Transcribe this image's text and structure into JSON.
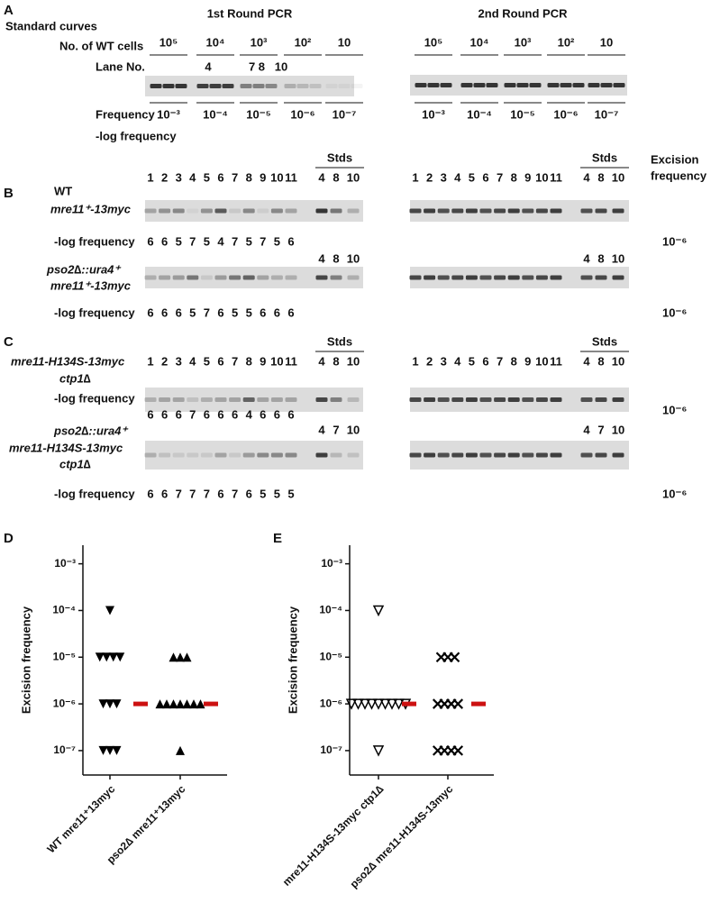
{
  "panel_a": {
    "label": "A",
    "heading": "Standard curves",
    "round1_title": "1st Round PCR",
    "round2_title": "2nd Round PCR",
    "cells_label": "No. of WT cells",
    "cell_counts": [
      "10⁵",
      "10⁴",
      "10³",
      "10²",
      "10"
    ],
    "lane_label": "Lane No.",
    "lane_numbers": [
      "4",
      "7 8",
      "10"
    ],
    "frequency_label": "Frequency",
    "frequencies": [
      "10⁻³",
      "10⁻⁴",
      "10⁻⁵",
      "10⁻⁶",
      "10⁻⁷"
    ],
    "neglog_label": "-log frequency"
  },
  "panel_b": {
    "label": "B",
    "header": [
      "Excision",
      "frequency"
    ],
    "stds_label": "Stds",
    "lanes": [
      1,
      2,
      3,
      4,
      5,
      6,
      7,
      8,
      9,
      10,
      11
    ],
    "rows": [
      {
        "strain": [
          "WT",
          "mre11⁺-13myc"
        ],
        "std_lanes": [
          4,
          8,
          10
        ],
        "neglog_label": "-log frequency",
        "neglog": [
          6,
          6,
          5,
          7,
          5,
          4,
          7,
          5,
          7,
          5,
          6
        ],
        "result": "10⁻⁶"
      },
      {
        "strain": [
          "pso2∆::ura4⁺",
          "mre11⁺-13myc"
        ],
        "std_lanes": [
          4,
          8,
          10
        ],
        "neglog_label": "-log frequency",
        "neglog": [
          6,
          6,
          6,
          5,
          7,
          6,
          5,
          5,
          6,
          6,
          6
        ],
        "result": "10⁻⁶"
      }
    ]
  },
  "panel_c": {
    "label": "C",
    "stds_label": "Stds",
    "lanes": [
      1,
      2,
      3,
      4,
      5,
      6,
      7,
      8,
      9,
      10,
      11
    ],
    "rows": [
      {
        "strain": [
          "mre11-H134S-13myc",
          "ctp1∆"
        ],
        "std_lanes": [
          4,
          8,
          10
        ],
        "neglog_label": "-log frequency",
        "neglog": [
          6,
          6,
          6,
          7,
          6,
          6,
          6,
          4,
          6,
          6,
          6
        ],
        "result": "10⁻⁶"
      },
      {
        "strain": [
          "pso2∆::ura4⁺",
          "mre11-H134S-13myc",
          "ctp1∆"
        ],
        "std_lanes": [
          4,
          7,
          10
        ],
        "neglog_label": "-log frequency",
        "neglog": [
          6,
          6,
          7,
          7,
          7,
          6,
          7,
          6,
          5,
          5,
          5
        ],
        "result": "10⁻⁶"
      }
    ]
  },
  "chart_data": [
    {
      "type": "scatter",
      "label": "D",
      "y_label": "Excision frequency",
      "log_scale": true,
      "ylim": [
        3e-08,
        0.0025
      ],
      "yticks": [
        {
          "value": 0.001,
          "label": "10⁻³"
        },
        {
          "value": 0.0001,
          "label": "10⁻⁴"
        },
        {
          "value": 1e-05,
          "label": "10⁻⁵"
        },
        {
          "value": 1e-06,
          "label": "10⁻⁶"
        },
        {
          "value": 1e-07,
          "label": "10⁻⁷"
        }
      ],
      "categories": [
        "WT mre11⁺13myc",
        "pso2∆ mre11⁺13myc"
      ],
      "series": [
        {
          "marker": "triangle-down",
          "color": "#000000",
          "values": [
            1e-06,
            1e-06,
            1e-05,
            1e-07,
            1e-05,
            0.0001,
            1e-07,
            1e-05,
            1e-07,
            1e-05,
            1e-06
          ]
        },
        {
          "marker": "triangle-up",
          "color": "#000000",
          "values": [
            1e-06,
            1e-06,
            1e-06,
            1e-05,
            1e-07,
            1e-06,
            1e-05,
            1e-05,
            1e-06,
            1e-06,
            1e-06
          ]
        }
      ],
      "medians": [
        1e-06,
        1e-06
      ],
      "median_color": "#cc1111"
    },
    {
      "type": "scatter",
      "label": "E",
      "y_label": "Excision frequency",
      "log_scale": true,
      "ylim": [
        3e-08,
        0.0025
      ],
      "yticks": [
        {
          "value": 0.001,
          "label": "10⁻³"
        },
        {
          "value": 0.0001,
          "label": "10⁻⁴"
        },
        {
          "value": 1e-05,
          "label": "10⁻⁵"
        },
        {
          "value": 1e-06,
          "label": "10⁻⁶"
        },
        {
          "value": 1e-07,
          "label": "10⁻⁷"
        }
      ],
      "categories": [
        "mre11-H134S-13myc ctp1∆",
        "pso2∆ mre11-H134S-13myc"
      ],
      "series": [
        {
          "marker": "triangle-down-open",
          "color": "#000000",
          "values": [
            1e-06,
            1e-06,
            1e-06,
            1e-07,
            1e-06,
            1e-06,
            1e-06,
            0.0001,
            1e-06,
            1e-06,
            1e-06
          ]
        },
        {
          "marker": "x",
          "color": "#000000",
          "values": [
            1e-06,
            1e-06,
            1e-07,
            1e-07,
            1e-07,
            1e-06,
            1e-07,
            1e-06,
            1e-05,
            1e-05,
            1e-05
          ]
        }
      ],
      "medians": [
        1e-06,
        1e-06
      ],
      "median_color": "#cc1111"
    }
  ]
}
